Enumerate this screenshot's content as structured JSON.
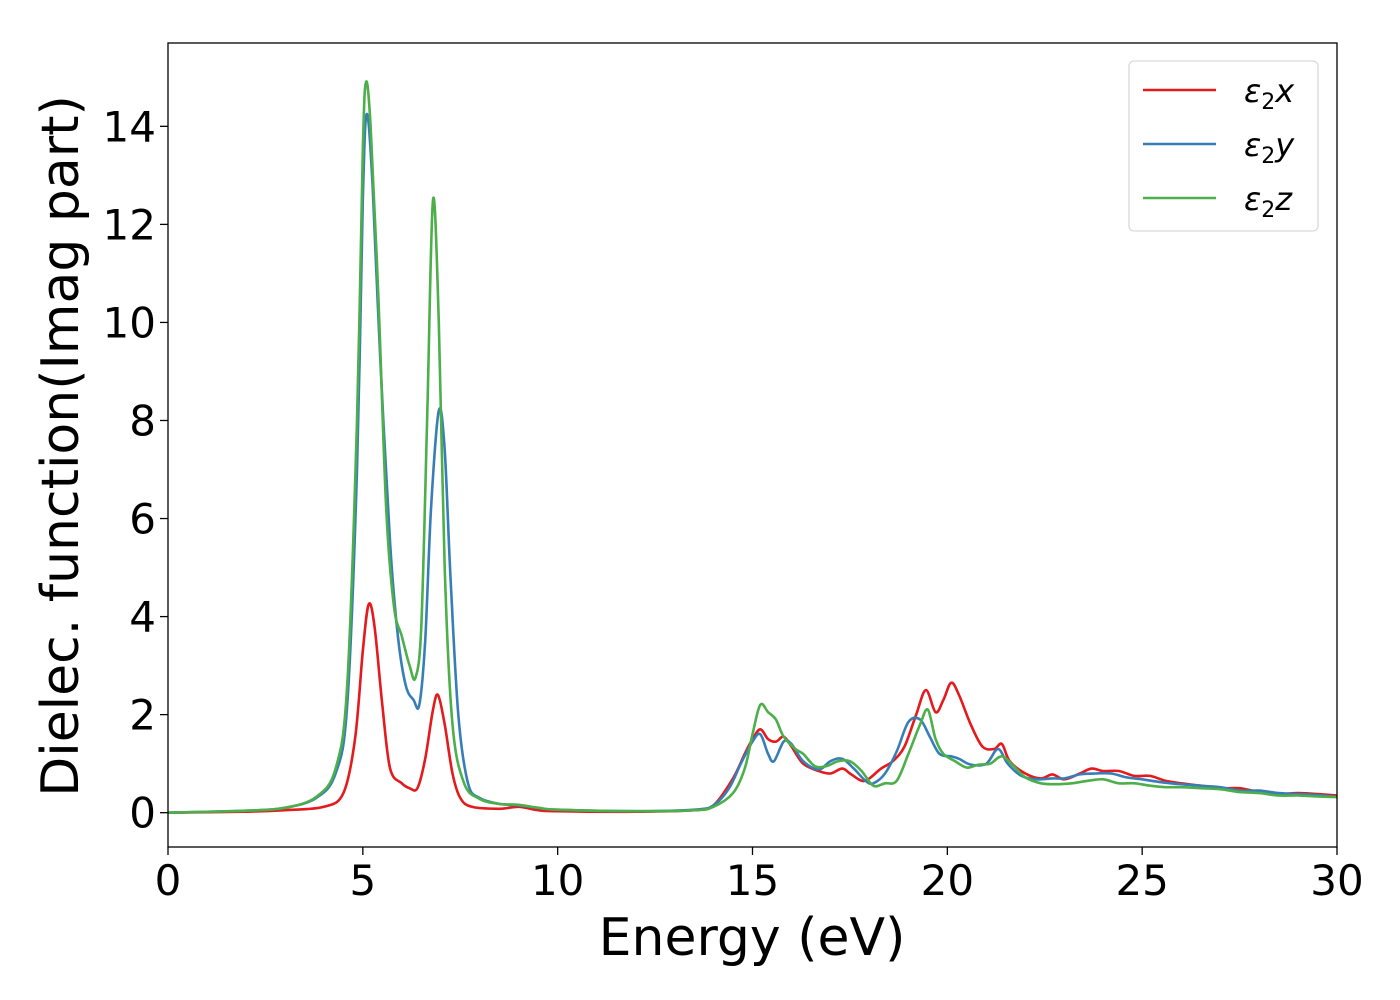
{
  "chart_data": {
    "type": "line",
    "title": "",
    "xlabel": "Energy (eV)",
    "ylabel": "Dielec. function(Imag part)",
    "xlim": [
      0,
      30
    ],
    "ylim": [
      -0.7,
      15.7
    ],
    "xticks": [
      0,
      5,
      10,
      15,
      20,
      25,
      30
    ],
    "yticks": [
      0,
      2,
      4,
      6,
      8,
      10,
      12,
      14
    ],
    "grid": false,
    "legend_position": "top-right",
    "series": [
      {
        "name": "ε2x",
        "legend_base": "ε",
        "legend_sub": "2",
        "legend_var": "x",
        "color": "#e41a1c",
        "points": [
          [
            0,
            0.0
          ],
          [
            2,
            0.02
          ],
          [
            3,
            0.05
          ],
          [
            4,
            0.12
          ],
          [
            4.5,
            0.4
          ],
          [
            4.8,
            1.5
          ],
          [
            5.0,
            3.3
          ],
          [
            5.15,
            4.25
          ],
          [
            5.3,
            3.8
          ],
          [
            5.5,
            2.2
          ],
          [
            5.7,
            0.9
          ],
          [
            6.0,
            0.6
          ],
          [
            6.2,
            0.5
          ],
          [
            6.4,
            0.5
          ],
          [
            6.6,
            1.1
          ],
          [
            6.8,
            2.1
          ],
          [
            6.93,
            2.4
          ],
          [
            7.1,
            1.8
          ],
          [
            7.3,
            0.8
          ],
          [
            7.5,
            0.3
          ],
          [
            7.8,
            0.12
          ],
          [
            8.5,
            0.08
          ],
          [
            9.0,
            0.12
          ],
          [
            9.5,
            0.05
          ],
          [
            10,
            0.03
          ],
          [
            12,
            0.02
          ],
          [
            13.5,
            0.05
          ],
          [
            14,
            0.15
          ],
          [
            14.5,
            0.7
          ],
          [
            14.8,
            1.2
          ],
          [
            15.0,
            1.5
          ],
          [
            15.2,
            1.7
          ],
          [
            15.4,
            1.5
          ],
          [
            15.6,
            1.45
          ],
          [
            15.8,
            1.55
          ],
          [
            16.0,
            1.35
          ],
          [
            16.3,
            1.0
          ],
          [
            16.7,
            0.85
          ],
          [
            17.0,
            0.8
          ],
          [
            17.3,
            0.9
          ],
          [
            17.5,
            0.8
          ],
          [
            17.8,
            0.65
          ],
          [
            18.0,
            0.7
          ],
          [
            18.3,
            0.9
          ],
          [
            18.6,
            1.05
          ],
          [
            18.9,
            1.35
          ],
          [
            19.2,
            2.0
          ],
          [
            19.45,
            2.5
          ],
          [
            19.7,
            2.05
          ],
          [
            19.9,
            2.3
          ],
          [
            20.1,
            2.65
          ],
          [
            20.3,
            2.4
          ],
          [
            20.6,
            1.8
          ],
          [
            20.9,
            1.35
          ],
          [
            21.2,
            1.3
          ],
          [
            21.4,
            1.4
          ],
          [
            21.6,
            1.05
          ],
          [
            22.0,
            0.8
          ],
          [
            22.4,
            0.7
          ],
          [
            22.7,
            0.78
          ],
          [
            23.0,
            0.68
          ],
          [
            23.4,
            0.8
          ],
          [
            23.7,
            0.9
          ],
          [
            24.0,
            0.85
          ],
          [
            24.4,
            0.85
          ],
          [
            24.8,
            0.75
          ],
          [
            25.2,
            0.75
          ],
          [
            25.6,
            0.65
          ],
          [
            26.0,
            0.6
          ],
          [
            26.5,
            0.55
          ],
          [
            27.0,
            0.5
          ],
          [
            27.5,
            0.5
          ],
          [
            28.0,
            0.42
          ],
          [
            28.5,
            0.38
          ],
          [
            29.0,
            0.4
          ],
          [
            29.5,
            0.38
          ],
          [
            30,
            0.35
          ]
        ]
      },
      {
        "name": "ε2y",
        "legend_base": "ε",
        "legend_sub": "2",
        "legend_var": "y",
        "color": "#377eb8",
        "points": [
          [
            0,
            0.0
          ],
          [
            2,
            0.04
          ],
          [
            3,
            0.1
          ],
          [
            3.8,
            0.3
          ],
          [
            4.3,
            0.8
          ],
          [
            4.6,
            2.2
          ],
          [
            4.85,
            7.0
          ],
          [
            5.0,
            12.5
          ],
          [
            5.1,
            14.25
          ],
          [
            5.25,
            12.8
          ],
          [
            5.45,
            9.2
          ],
          [
            5.7,
            5.5
          ],
          [
            5.9,
            3.6
          ],
          [
            6.1,
            2.6
          ],
          [
            6.3,
            2.3
          ],
          [
            6.45,
            2.2
          ],
          [
            6.6,
            3.5
          ],
          [
            6.75,
            6.2
          ],
          [
            6.95,
            8.2
          ],
          [
            7.1,
            7.4
          ],
          [
            7.25,
            4.8
          ],
          [
            7.45,
            2.0
          ],
          [
            7.7,
            0.6
          ],
          [
            8.0,
            0.3
          ],
          [
            8.5,
            0.18
          ],
          [
            9.0,
            0.15
          ],
          [
            9.5,
            0.1
          ],
          [
            10,
            0.06
          ],
          [
            12,
            0.03
          ],
          [
            13.5,
            0.06
          ],
          [
            14.0,
            0.15
          ],
          [
            14.4,
            0.5
          ],
          [
            14.7,
            1.0
          ],
          [
            15.0,
            1.45
          ],
          [
            15.2,
            1.6
          ],
          [
            15.4,
            1.2
          ],
          [
            15.55,
            1.05
          ],
          [
            15.8,
            1.45
          ],
          [
            16.0,
            1.4
          ],
          [
            16.3,
            1.05
          ],
          [
            16.7,
            0.88
          ],
          [
            17.0,
            1.05
          ],
          [
            17.3,
            1.1
          ],
          [
            17.6,
            0.9
          ],
          [
            17.9,
            0.65
          ],
          [
            18.1,
            0.6
          ],
          [
            18.4,
            0.8
          ],
          [
            18.7,
            1.25
          ],
          [
            19.0,
            1.85
          ],
          [
            19.3,
            1.9
          ],
          [
            19.55,
            1.55
          ],
          [
            19.8,
            1.2
          ],
          [
            20.1,
            1.15
          ],
          [
            20.3,
            1.1
          ],
          [
            20.6,
            0.98
          ],
          [
            21.0,
            1.0
          ],
          [
            21.3,
            1.3
          ],
          [
            21.55,
            1.0
          ],
          [
            21.9,
            0.75
          ],
          [
            22.3,
            0.68
          ],
          [
            22.7,
            0.7
          ],
          [
            23.0,
            0.7
          ],
          [
            23.4,
            0.78
          ],
          [
            23.8,
            0.8
          ],
          [
            24.2,
            0.8
          ],
          [
            24.6,
            0.72
          ],
          [
            25.0,
            0.68
          ],
          [
            25.5,
            0.62
          ],
          [
            26.0,
            0.58
          ],
          [
            26.5,
            0.55
          ],
          [
            27.0,
            0.52
          ],
          [
            27.5,
            0.45
          ],
          [
            28.0,
            0.45
          ],
          [
            28.5,
            0.4
          ],
          [
            29.0,
            0.38
          ],
          [
            29.5,
            0.36
          ],
          [
            30,
            0.32
          ]
        ]
      },
      {
        "name": "ε2z",
        "legend_base": "ε",
        "legend_sub": "2",
        "legend_var": "z",
        "color": "#4daf4a",
        "points": [
          [
            0,
            0.0
          ],
          [
            2,
            0.04
          ],
          [
            3,
            0.1
          ],
          [
            3.8,
            0.32
          ],
          [
            4.3,
            0.9
          ],
          [
            4.6,
            2.6
          ],
          [
            4.85,
            8.0
          ],
          [
            5.0,
            13.5
          ],
          [
            5.08,
            14.9
          ],
          [
            5.2,
            14.0
          ],
          [
            5.4,
            10.5
          ],
          [
            5.6,
            6.2
          ],
          [
            5.8,
            4.2
          ],
          [
            6.0,
            3.6
          ],
          [
            6.2,
            3.0
          ],
          [
            6.35,
            2.75
          ],
          [
            6.5,
            3.8
          ],
          [
            6.65,
            8.0
          ],
          [
            6.8,
            12.5
          ],
          [
            6.95,
            10.0
          ],
          [
            7.1,
            5.0
          ],
          [
            7.3,
            1.8
          ],
          [
            7.6,
            0.6
          ],
          [
            8.0,
            0.28
          ],
          [
            8.5,
            0.18
          ],
          [
            9.0,
            0.16
          ],
          [
            9.5,
            0.1
          ],
          [
            10,
            0.06
          ],
          [
            12,
            0.03
          ],
          [
            13.5,
            0.05
          ],
          [
            14.0,
            0.12
          ],
          [
            14.5,
            0.4
          ],
          [
            14.8,
            0.9
          ],
          [
            15.0,
            1.6
          ],
          [
            15.2,
            2.2
          ],
          [
            15.4,
            2.05
          ],
          [
            15.6,
            1.9
          ],
          [
            15.8,
            1.55
          ],
          [
            16.1,
            1.3
          ],
          [
            16.3,
            1.2
          ],
          [
            16.6,
            0.95
          ],
          [
            16.9,
            0.95
          ],
          [
            17.2,
            1.05
          ],
          [
            17.5,
            1.05
          ],
          [
            17.8,
            0.85
          ],
          [
            18.1,
            0.55
          ],
          [
            18.4,
            0.6
          ],
          [
            18.7,
            0.65
          ],
          [
            19.0,
            1.2
          ],
          [
            19.3,
            1.8
          ],
          [
            19.5,
            2.1
          ],
          [
            19.7,
            1.5
          ],
          [
            19.9,
            1.2
          ],
          [
            20.2,
            1.05
          ],
          [
            20.5,
            0.92
          ],
          [
            20.8,
            0.98
          ],
          [
            21.1,
            1.0
          ],
          [
            21.4,
            1.15
          ],
          [
            21.7,
            0.95
          ],
          [
            22.0,
            0.72
          ],
          [
            22.4,
            0.6
          ],
          [
            22.8,
            0.58
          ],
          [
            23.2,
            0.6
          ],
          [
            23.6,
            0.65
          ],
          [
            24.0,
            0.68
          ],
          [
            24.4,
            0.6
          ],
          [
            24.8,
            0.6
          ],
          [
            25.2,
            0.55
          ],
          [
            25.6,
            0.52
          ],
          [
            26.0,
            0.52
          ],
          [
            26.5,
            0.5
          ],
          [
            27.0,
            0.48
          ],
          [
            27.5,
            0.42
          ],
          [
            28.0,
            0.4
          ],
          [
            28.5,
            0.35
          ],
          [
            29.0,
            0.35
          ],
          [
            29.5,
            0.33
          ],
          [
            30,
            0.32
          ]
        ]
      }
    ]
  }
}
